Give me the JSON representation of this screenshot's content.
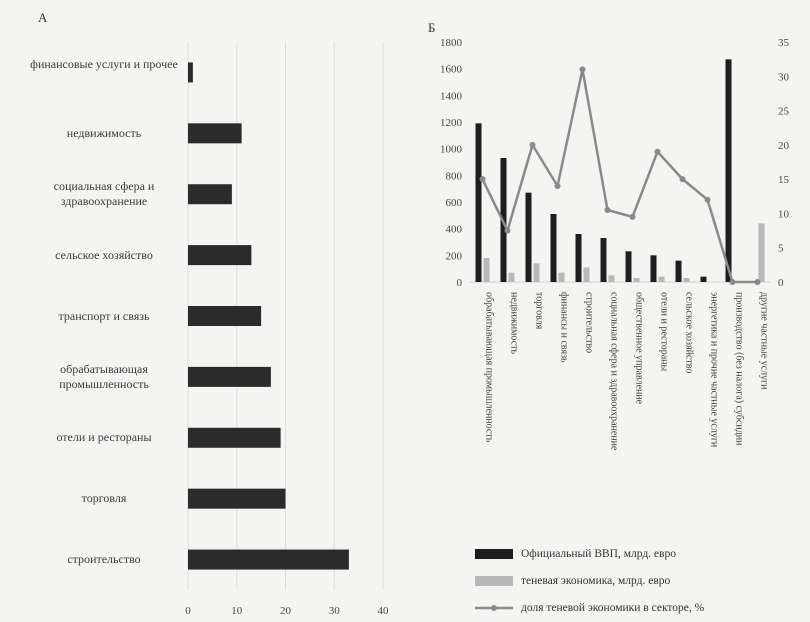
{
  "panel_a_letter": "А",
  "panel_b_letter": "Б",
  "colors": {
    "gdp": "#1e1e1e",
    "shadow": "#b8b8b8",
    "share": "#8a8a8a",
    "barA": "#2b2b2b"
  },
  "chart_data": [
    {
      "type": "bar",
      "orientation": "horizontal",
      "categories": [
        "финансовые услуги и прочее",
        "недвижимость",
        "социальная сфера и здравоохранение",
        "сельское хозяйство",
        "транспорт и связь",
        "обрабатывающая промышленность",
        "отели и рестораны",
        "торговля",
        "строительство"
      ],
      "values": [
        1,
        11,
        9,
        13,
        15,
        17,
        19,
        20,
        33
      ],
      "xlim": [
        0,
        40
      ],
      "xticks": [
        0,
        10,
        20,
        30,
        40
      ]
    },
    {
      "type": "bar",
      "categories": [
        "обрабатывающая промышленность",
        "недвижимость",
        "торговля",
        "финансы и связь",
        "строительство",
        "социальная сфера и здравоохранение",
        "общественное управление",
        "отели и рестораны",
        "сельское хозяйство",
        "энергетика и прочие частные услуги",
        "производство (без налога) субсидии",
        "другие частные услуги"
      ],
      "series": [
        {
          "name": "Официальный ВВП, млрд. евро",
          "type": "bar",
          "axis": "left",
          "values": [
            1190,
            930,
            670,
            510,
            360,
            330,
            230,
            200,
            160,
            40,
            1670,
            0
          ]
        },
        {
          "name": "теневая экономика, млрд. евро",
          "type": "bar",
          "axis": "left",
          "values": [
            180,
            70,
            140,
            70,
            110,
            50,
            30,
            40,
            30,
            0,
            0,
            440
          ]
        },
        {
          "name": "доля теневой экономики в секторе, %",
          "type": "line",
          "axis": "right",
          "values": [
            15,
            7.5,
            20,
            14,
            31,
            10.5,
            9.5,
            19,
            15,
            12,
            0,
            0
          ]
        }
      ],
      "ylim_left": [
        0,
        1800
      ],
      "yticks_left": [
        0,
        200,
        400,
        600,
        800,
        1000,
        1200,
        1400,
        1600,
        1800
      ],
      "ylim_right": [
        0,
        35
      ],
      "yticks_right": [
        0,
        5,
        10,
        15,
        20,
        25,
        30,
        35
      ],
      "legend_position": "bottom"
    }
  ]
}
